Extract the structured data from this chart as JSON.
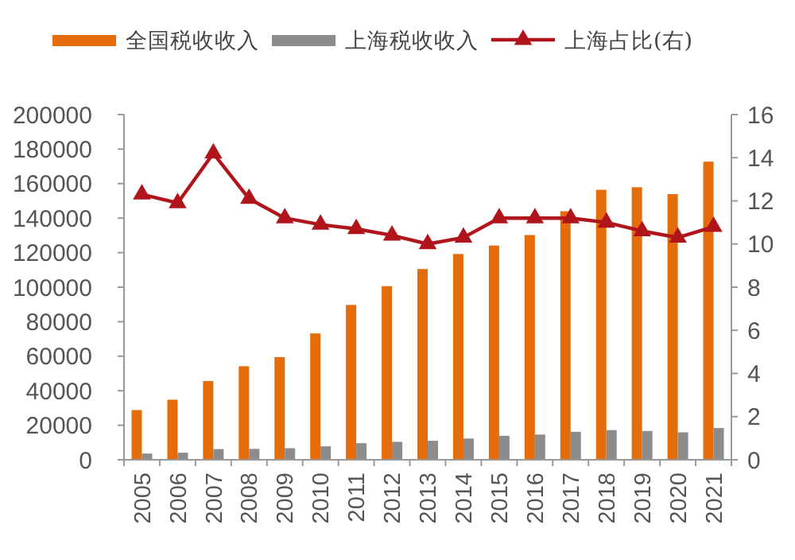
{
  "chart_data": {
    "type": "bar",
    "categories": [
      "2005",
      "2006",
      "2007",
      "2008",
      "2009",
      "2010",
      "2011",
      "2012",
      "2013",
      "2014",
      "2015",
      "2016",
      "2017",
      "2018",
      "2019",
      "2020",
      "2021"
    ],
    "series": [
      {
        "name": "全国税收收入",
        "color": "#e46c0a",
        "values": [
          28800,
          34800,
          45600,
          54200,
          59500,
          73200,
          89700,
          100600,
          110500,
          119200,
          124100,
          130200,
          144000,
          156400,
          157900,
          153900,
          172700
        ]
      },
      {
        "name": "上海税收收入",
        "color": "#8c8c8c",
        "values": [
          3600,
          4100,
          6200,
          6300,
          6700,
          7800,
          9600,
          10400,
          11000,
          12300,
          13900,
          14600,
          16200,
          17200,
          16700,
          15900,
          18400
        ]
      },
      {
        "name": "上海占比(右)",
        "type": "line",
        "axis": "y2",
        "color": "#b0151b",
        "marker": "triangle",
        "values": [
          12.3,
          11.9,
          14.2,
          12.1,
          11.2,
          10.9,
          10.7,
          10.4,
          10.0,
          10.3,
          11.2,
          11.2,
          11.2,
          11.0,
          10.6,
          10.3,
          10.8
        ]
      }
    ],
    "ylim": [
      0,
      200000
    ],
    "yticks": [
      0,
      20000,
      40000,
      60000,
      80000,
      100000,
      120000,
      140000,
      160000,
      180000,
      200000
    ],
    "y2lim": [
      0,
      16
    ],
    "y2ticks": [
      0,
      2,
      4,
      6,
      8,
      10,
      12,
      14,
      16
    ],
    "legend": "top",
    "grid": false
  }
}
